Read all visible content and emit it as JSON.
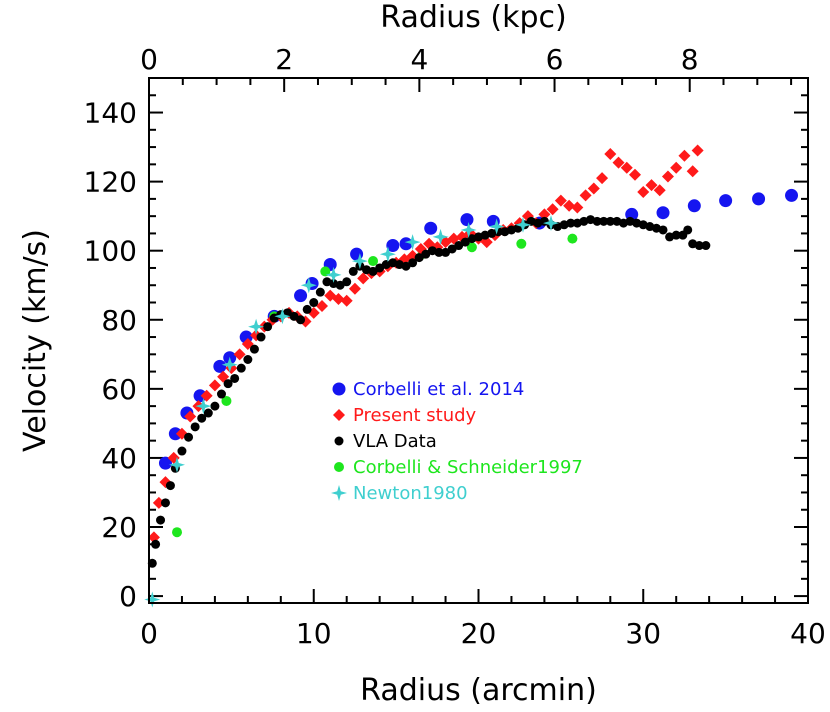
{
  "chart_data": {
    "type": "scatter",
    "xlabel": "Radius (arcmin)",
    "x2label": "Radius (kpc)",
    "ylabel": "Velocity (km/s)",
    "xlim": [
      0,
      40
    ],
    "x2lim": [
      0,
      9.75
    ],
    "ylim": [
      -2,
      150
    ],
    "x_ticks": [
      "0",
      "10",
      "20",
      "30",
      "40"
    ],
    "x2_ticks": [
      "0",
      "2",
      "4",
      "6",
      "8"
    ],
    "y_ticks": [
      "0",
      "20",
      "40",
      "60",
      "80",
      "100",
      "120",
      "140"
    ],
    "legend_position": "middle",
    "series": [
      {
        "name": "Corbelli et al. 2014",
        "color": "#1515f0",
        "marker": "circle-large",
        "points": [
          [
            1,
            38.5
          ],
          [
            1.6,
            47
          ],
          [
            2.3,
            53
          ],
          [
            3.1,
            58
          ],
          [
            4.3,
            66.5
          ],
          [
            4.9,
            69
          ],
          [
            5.9,
            75
          ],
          [
            7.6,
            81
          ],
          [
            9.2,
            87
          ],
          [
            9.9,
            90.5
          ],
          [
            11,
            96
          ],
          [
            12.6,
            99
          ],
          [
            14.8,
            101.5
          ],
          [
            15.6,
            102
          ],
          [
            17.1,
            106.5
          ],
          [
            19.3,
            109
          ],
          [
            20.9,
            108.5
          ],
          [
            23.7,
            108
          ],
          [
            29.3,
            110.5
          ],
          [
            31.2,
            111
          ],
          [
            33.1,
            113
          ],
          [
            35,
            114.5
          ],
          [
            37,
            115
          ],
          [
            39,
            116
          ]
        ]
      },
      {
        "name": "Present study",
        "color": "#ff1a1a",
        "marker": "diamond",
        "points": [
          [
            0.3,
            17
          ],
          [
            0.6,
            27
          ],
          [
            1,
            33
          ],
          [
            1.5,
            40
          ],
          [
            2,
            47
          ],
          [
            2.5,
            52
          ],
          [
            3,
            55
          ],
          [
            3.5,
            58
          ],
          [
            4,
            61
          ],
          [
            4.5,
            63.5
          ],
          [
            5,
            66
          ],
          [
            5.5,
            70
          ],
          [
            6,
            73
          ],
          [
            6.5,
            75.5
          ],
          [
            7,
            78
          ],
          [
            7.5,
            80
          ],
          [
            8,
            81
          ],
          [
            8.5,
            82
          ],
          [
            9,
            81
          ],
          [
            9.5,
            79.5
          ],
          [
            10,
            82
          ],
          [
            10.5,
            84
          ],
          [
            11,
            87
          ],
          [
            11.5,
            86
          ],
          [
            12,
            85.5
          ],
          [
            12.5,
            89
          ],
          [
            13,
            92
          ],
          [
            13.5,
            93.5
          ],
          [
            14,
            94
          ],
          [
            14.5,
            95.5
          ],
          [
            15,
            96.5
          ],
          [
            15.5,
            97.5
          ],
          [
            16,
            98.5
          ],
          [
            16.5,
            100.5
          ],
          [
            17,
            102
          ],
          [
            17.5,
            101
          ],
          [
            18,
            102.5
          ],
          [
            18.5,
            103.5
          ],
          [
            19,
            104
          ],
          [
            19.5,
            105
          ],
          [
            20,
            103.5
          ],
          [
            20.5,
            102.5
          ],
          [
            21,
            104.5
          ],
          [
            21.5,
            106
          ],
          [
            22,
            106.5
          ],
          [
            22.5,
            108
          ],
          [
            23,
            110
          ],
          [
            23.5,
            108
          ],
          [
            24,
            110.5
          ],
          [
            24.5,
            112
          ],
          [
            25,
            114.5
          ],
          [
            25.5,
            113
          ],
          [
            26,
            112.5
          ],
          [
            26.5,
            116
          ],
          [
            27,
            118
          ],
          [
            27.5,
            121
          ],
          [
            28,
            128
          ],
          [
            28.5,
            125.5
          ],
          [
            29,
            124
          ],
          [
            29.5,
            122
          ],
          [
            30,
            117
          ],
          [
            30.5,
            119
          ],
          [
            31,
            117.5
          ],
          [
            31.5,
            121.5
          ],
          [
            32,
            124
          ],
          [
            32.5,
            127.5
          ],
          [
            33,
            123
          ],
          [
            33.3,
            129
          ]
        ]
      },
      {
        "name": "VLA Data",
        "color": "#000000",
        "marker": "circle-small",
        "points": [
          [
            0.2,
            9.5
          ],
          [
            0.4,
            15
          ],
          [
            0.7,
            22
          ],
          [
            1,
            27
          ],
          [
            1.3,
            32
          ],
          [
            1.6,
            37
          ],
          [
            2,
            42
          ],
          [
            2.4,
            46
          ],
          [
            2.8,
            49
          ],
          [
            3.2,
            51.5
          ],
          [
            3.6,
            53
          ],
          [
            4,
            55
          ],
          [
            4.4,
            58.5
          ],
          [
            4.8,
            61.5
          ],
          [
            5.2,
            63
          ],
          [
            5.6,
            66
          ],
          [
            6,
            68.5
          ],
          [
            6.4,
            71.5
          ],
          [
            6.8,
            75
          ],
          [
            7.2,
            78
          ],
          [
            7.6,
            80.5
          ],
          [
            8,
            81.5
          ],
          [
            8.4,
            82
          ],
          [
            8.8,
            81
          ],
          [
            9.2,
            80
          ],
          [
            9.6,
            83
          ],
          [
            10,
            85
          ],
          [
            10.4,
            88
          ],
          [
            10.8,
            91
          ],
          [
            11.2,
            90.5
          ],
          [
            11.6,
            90
          ],
          [
            12,
            91
          ],
          [
            12.4,
            94
          ],
          [
            12.8,
            95.5
          ],
          [
            13.2,
            94.5
          ],
          [
            13.6,
            94
          ],
          [
            14,
            95
          ],
          [
            14.4,
            96
          ],
          [
            14.8,
            96.5
          ],
          [
            15.2,
            96
          ],
          [
            15.6,
            95.5
          ],
          [
            16,
            96.5
          ],
          [
            16.4,
            98
          ],
          [
            16.8,
            99
          ],
          [
            17.2,
            100
          ],
          [
            17.6,
            99.5
          ],
          [
            18,
            99.5
          ],
          [
            18.4,
            100.5
          ],
          [
            18.8,
            101.5
          ],
          [
            19.2,
            102.5
          ],
          [
            19.6,
            103.5
          ],
          [
            20,
            104
          ],
          [
            20.4,
            104.5
          ],
          [
            20.8,
            105
          ],
          [
            21.2,
            105.5
          ],
          [
            21.6,
            105.5
          ],
          [
            22,
            106
          ],
          [
            22.4,
            106.5
          ],
          [
            22.8,
            107.5
          ],
          [
            23.2,
            108.5
          ],
          [
            23.6,
            108
          ],
          [
            24,
            108.5
          ],
          [
            24.4,
            107.5
          ],
          [
            24.8,
            107
          ],
          [
            25.2,
            107.5
          ],
          [
            25.6,
            108
          ],
          [
            26,
            108
          ],
          [
            26.4,
            108.5
          ],
          [
            26.8,
            109
          ],
          [
            27.2,
            108.5
          ],
          [
            27.6,
            108.5
          ],
          [
            28,
            108.5
          ],
          [
            28.4,
            108.5
          ],
          [
            28.8,
            108
          ],
          [
            29.2,
            108.5
          ],
          [
            29.6,
            108
          ],
          [
            30,
            107.5
          ],
          [
            30.4,
            107
          ],
          [
            30.8,
            106.5
          ],
          [
            31.2,
            106
          ],
          [
            31.6,
            104
          ],
          [
            32,
            104.5
          ],
          [
            32.4,
            104.5
          ],
          [
            32.7,
            106
          ],
          [
            33,
            102
          ],
          [
            33.4,
            101.5
          ],
          [
            33.8,
            101.5
          ]
        ]
      },
      {
        "name": "Corbelli & Schneider1997",
        "color": "#1ee61e",
        "marker": "circle-medium",
        "points": [
          [
            1.7,
            18.5
          ],
          [
            4.7,
            56.5
          ],
          [
            7.6,
            81
          ],
          [
            10.7,
            94
          ],
          [
            13.6,
            97
          ],
          [
            16.6,
            99
          ],
          [
            19.6,
            101
          ],
          [
            22.6,
            102
          ],
          [
            25.7,
            103.5
          ]
        ]
      },
      {
        "name": "Newton1980",
        "color": "#3fcfcf",
        "marker": "star",
        "points": [
          [
            0.2,
            -1
          ],
          [
            1.7,
            38
          ],
          [
            3.3,
            55
          ],
          [
            4.9,
            67
          ],
          [
            6.5,
            78
          ],
          [
            8.1,
            81
          ],
          [
            9.7,
            90
          ],
          [
            11.2,
            93
          ],
          [
            12.8,
            97
          ],
          [
            14.5,
            99
          ],
          [
            16,
            102.5
          ],
          [
            17.7,
            104
          ],
          [
            19.4,
            106
          ],
          [
            21.1,
            107
          ],
          [
            22.7,
            107.5
          ],
          [
            24.4,
            108
          ]
        ]
      }
    ]
  }
}
